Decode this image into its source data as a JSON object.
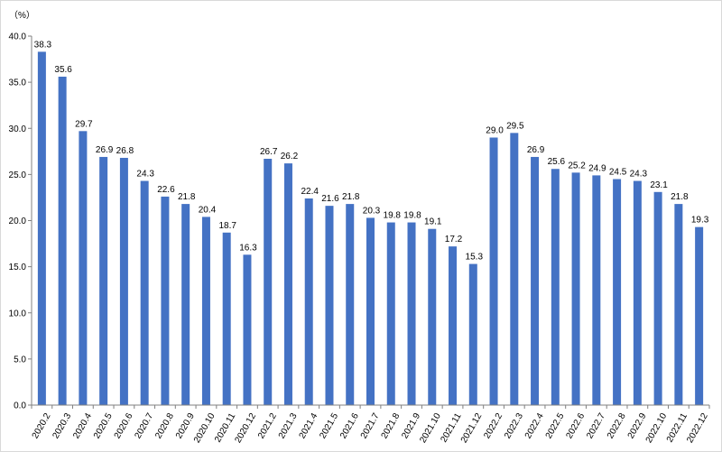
{
  "chart_data": {
    "type": "bar",
    "title": "",
    "xlabel": "",
    "ylabel": "（%）",
    "ylim": [
      0,
      40
    ],
    "yticks": [
      "0.0",
      "5.0",
      "10.0",
      "15.0",
      "20.0",
      "25.0",
      "30.0",
      "35.0",
      "40.0"
    ],
    "grid": false,
    "bar_color": "#4472c4",
    "categories": [
      "2020.2",
      "2020.3",
      "2020.4",
      "2020.5",
      "2020.6",
      "2020.7",
      "2020.8",
      "2020.9",
      "2020.10",
      "2020.11",
      "2020.12",
      "2021.2",
      "2021.3",
      "2021.4",
      "2021.5",
      "2021.6",
      "2021.7",
      "2021.8",
      "2021.9",
      "2021.10",
      "2021.11",
      "2021.12",
      "2022.2",
      "2022.3",
      "2022.4",
      "2022.5",
      "2022.6",
      "2022.7",
      "2022.8",
      "2022.9",
      "2022.10",
      "2022.11",
      "2022.12"
    ],
    "values": [
      38.3,
      35.6,
      29.7,
      26.9,
      26.8,
      24.3,
      22.6,
      21.8,
      20.4,
      18.7,
      16.3,
      26.7,
      26.2,
      22.4,
      21.6,
      21.8,
      20.3,
      19.8,
      19.8,
      19.1,
      17.2,
      15.3,
      29.0,
      29.5,
      26.9,
      25.6,
      25.2,
      24.9,
      24.5,
      24.3,
      23.1,
      21.8,
      19.3
    ],
    "data_labels": [
      "38.3",
      "35.6",
      "29.7",
      "26.9",
      "26.8",
      "24.3",
      "22.6",
      "21.8",
      "20.4",
      "18.7",
      "16.3",
      "26.7",
      "26.2",
      "22.4",
      "21.6",
      "21.8",
      "20.3",
      "19.8",
      "19.8",
      "19.1",
      "17.2",
      "15.3",
      "29.0",
      "29.5",
      "26.9",
      "25.6",
      "25.2",
      "24.9",
      "24.5",
      "24.3",
      "23.1",
      "21.8",
      "19.3"
    ]
  }
}
